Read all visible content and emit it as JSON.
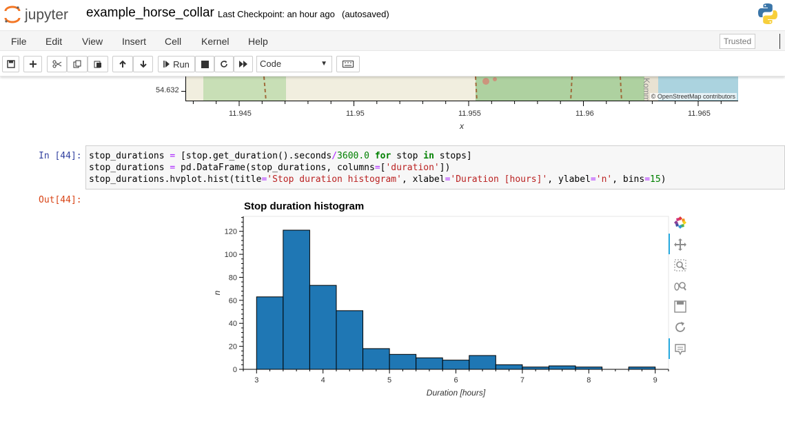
{
  "header": {
    "logo_text": "jupyter",
    "notebook_name": "example_horse_collar",
    "checkpoint": "Last Checkpoint: an hour ago",
    "autosave": "(autosaved)"
  },
  "menubar": {
    "items": [
      "File",
      "Edit",
      "View",
      "Insert",
      "Cell",
      "Kernel",
      "Help"
    ],
    "trusted_label": "Trusted"
  },
  "toolbar": {
    "run_label": "Run",
    "cell_type": "Code"
  },
  "map_output": {
    "y_tick": "54.632",
    "x_ticks": [
      "11.945",
      "11.95",
      "11.955",
      "11.96",
      "11.965"
    ],
    "x_label": "x",
    "attribution": "© OpenStreetMap contributors",
    "map_label": "Komm"
  },
  "cell": {
    "in_prompt": "In [44]:",
    "out_prompt": "Out[44]:",
    "code_lines": [
      "stop_durations = [stop.get_duration().seconds/3600.0 for stop in stops]",
      "stop_durations = pd.DataFrame(stop_durations, columns=['duration'])",
      "stop_durations.hvplot.hist(title='Stop duration histogram', xlabel='Duration [hours]', ylabel='n', bins=15)"
    ]
  },
  "chart_data": {
    "type": "bar",
    "title": "Stop duration histogram",
    "xlabel": "Duration [hours]",
    "ylabel": "n",
    "bin_edges": [
      3.0,
      3.4,
      3.8,
      4.2,
      4.6,
      5.0,
      5.4,
      5.8,
      6.2,
      6.6,
      7.0,
      7.4,
      7.8,
      8.2,
      8.6,
      9.0
    ],
    "values": [
      63,
      121,
      73,
      51,
      18,
      13,
      10,
      8,
      12,
      4,
      2,
      3,
      2,
      0,
      2
    ],
    "xlim": [
      2.8,
      9.2
    ],
    "ylim": [
      0,
      133
    ],
    "x_ticks": [
      3,
      4,
      5,
      6,
      7,
      8,
      9
    ],
    "y_ticks": [
      0,
      20,
      40,
      60,
      80,
      100,
      120
    ],
    "bar_color": "#1f77b4",
    "grid": false
  }
}
